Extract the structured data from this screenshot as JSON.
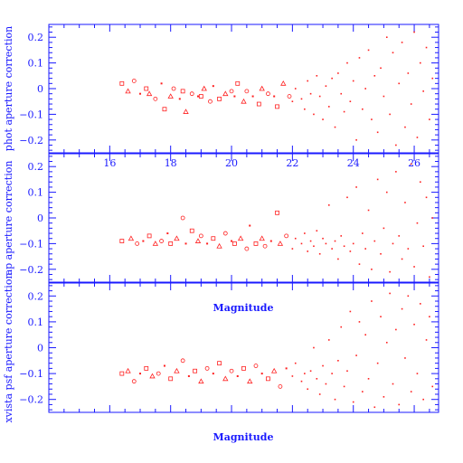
{
  "chart_data": [
    {
      "type": "scatter",
      "ylabel": "phot aperture correction",
      "xlabel": "",
      "xlim": [
        14,
        26.8
      ],
      "ylim": [
        -0.25,
        0.25
      ],
      "xticks": [
        16,
        18,
        20,
        22,
        24,
        26
      ],
      "yticks": [
        -0.2,
        -0.1,
        0,
        0.1,
        0.2
      ],
      "ytick_labels": [
        "−0.2",
        "−0.1",
        "0",
        "0.1",
        "0.2"
      ],
      "xtick_labels_shown": true,
      "grid": false,
      "series": [
        {
          "points": [
            [
              16.4,
              0.02
            ],
            [
              16.6,
              -0.01
            ],
            [
              16.8,
              0.03
            ],
            [
              17.0,
              -0.02
            ],
            [
              17.2,
              0.0
            ],
            [
              17.3,
              -0.02
            ],
            [
              17.5,
              -0.04
            ],
            [
              17.7,
              0.02
            ],
            [
              17.8,
              -0.08
            ],
            [
              18.0,
              -0.03
            ],
            [
              18.1,
              0.0
            ],
            [
              18.3,
              -0.04
            ],
            [
              18.4,
              -0.01
            ],
            [
              18.5,
              -0.09
            ],
            [
              18.7,
              -0.02
            ],
            [
              18.9,
              -0.03
            ],
            [
              19.0,
              -0.03
            ],
            [
              19.1,
              0.0
            ],
            [
              19.3,
              -0.05
            ],
            [
              19.4,
              0.01
            ],
            [
              19.6,
              -0.04
            ],
            [
              19.8,
              -0.02
            ],
            [
              20.0,
              -0.01
            ],
            [
              20.1,
              -0.03
            ],
            [
              20.2,
              0.02
            ],
            [
              20.4,
              -0.05
            ],
            [
              20.5,
              -0.01
            ],
            [
              20.7,
              -0.03
            ],
            [
              20.9,
              -0.06
            ],
            [
              21.0,
              0.0
            ],
            [
              21.2,
              -0.02
            ],
            [
              21.4,
              -0.03
            ],
            [
              21.5,
              -0.07
            ],
            [
              21.7,
              0.02
            ],
            [
              21.9,
              -0.03
            ],
            [
              22.0,
              -0.05
            ],
            [
              22.1,
              0.0
            ],
            [
              22.3,
              -0.04
            ],
            [
              22.4,
              -0.08
            ],
            [
              22.5,
              0.03
            ],
            [
              22.6,
              -0.02
            ],
            [
              22.7,
              -0.1
            ],
            [
              22.8,
              0.05
            ],
            [
              22.9,
              -0.03
            ],
            [
              23.0,
              -0.12
            ],
            [
              23.1,
              0.01
            ],
            [
              23.2,
              -0.07
            ],
            [
              23.3,
              0.04
            ],
            [
              23.4,
              -0.15
            ],
            [
              23.5,
              0.06
            ],
            [
              23.6,
              -0.02
            ],
            [
              23.7,
              -0.09
            ],
            [
              23.8,
              0.1
            ],
            [
              23.9,
              -0.05
            ],
            [
              24.0,
              0.03
            ],
            [
              24.1,
              -0.2
            ],
            [
              24.2,
              0.12
            ],
            [
              24.3,
              -0.08
            ],
            [
              24.4,
              0.0
            ],
            [
              24.5,
              0.15
            ],
            [
              24.6,
              -0.12
            ],
            [
              24.7,
              0.05
            ],
            [
              24.8,
              -0.17
            ],
            [
              24.9,
              0.08
            ],
            [
              25.0,
              -0.03
            ],
            [
              25.1,
              0.2
            ],
            [
              25.2,
              -0.1
            ],
            [
              25.3,
              0.14
            ],
            [
              25.4,
              -0.22
            ],
            [
              25.5,
              0.02
            ],
            [
              25.6,
              0.18
            ],
            [
              25.7,
              -0.15
            ],
            [
              25.8,
              0.06
            ],
            [
              25.9,
              -0.06
            ],
            [
              26.0,
              0.22
            ],
            [
              26.1,
              -0.19
            ],
            [
              26.2,
              0.1
            ],
            [
              26.3,
              -0.01
            ],
            [
              26.4,
              0.16
            ],
            [
              26.5,
              -0.12
            ],
            [
              26.6,
              0.04
            ]
          ]
        }
      ]
    },
    {
      "type": "scatter",
      "ylabel": "ap aperture correction",
      "xlabel": "Magnitude",
      "xlim": [
        14,
        26.8
      ],
      "ylim": [
        -0.25,
        0.25
      ],
      "xticks": [
        16,
        18,
        20,
        22,
        24,
        26
      ],
      "yticks": [
        -0.2,
        -0.1,
        0,
        0.1,
        0.2
      ],
      "ytick_labels": [
        "−0.2",
        "−0.1",
        "0",
        "0.1",
        "0.2"
      ],
      "xtick_labels_shown": false,
      "grid": false,
      "series": [
        {
          "points": [
            [
              16.4,
              -0.09
            ],
            [
              16.7,
              -0.08
            ],
            [
              16.9,
              -0.1
            ],
            [
              17.1,
              -0.09
            ],
            [
              17.3,
              -0.07
            ],
            [
              17.5,
              -0.1
            ],
            [
              17.7,
              -0.09
            ],
            [
              17.9,
              -0.06
            ],
            [
              18.0,
              -0.1
            ],
            [
              18.2,
              -0.08
            ],
            [
              18.4,
              0.0
            ],
            [
              18.5,
              -0.1
            ],
            [
              18.7,
              -0.05
            ],
            [
              18.9,
              -0.09
            ],
            [
              19.0,
              -0.07
            ],
            [
              19.2,
              -0.1
            ],
            [
              19.4,
              -0.08
            ],
            [
              19.6,
              -0.11
            ],
            [
              19.8,
              -0.06
            ],
            [
              20.0,
              -0.09
            ],
            [
              20.1,
              -0.1
            ],
            [
              20.3,
              -0.08
            ],
            [
              20.5,
              -0.12
            ],
            [
              20.6,
              -0.03
            ],
            [
              20.8,
              -0.1
            ],
            [
              21.0,
              -0.08
            ],
            [
              21.1,
              -0.11
            ],
            [
              21.3,
              -0.09
            ],
            [
              21.5,
              0.02
            ],
            [
              21.6,
              -0.1
            ],
            [
              21.8,
              -0.07
            ],
            [
              22.0,
              -0.12
            ],
            [
              22.1,
              -0.08
            ],
            [
              22.3,
              -0.1
            ],
            [
              22.4,
              -0.06
            ],
            [
              22.5,
              -0.13
            ],
            [
              22.6,
              -0.09
            ],
            [
              22.7,
              -0.11
            ],
            [
              22.8,
              -0.05
            ],
            [
              22.9,
              -0.14
            ],
            [
              23.0,
              -0.08
            ],
            [
              23.1,
              -0.1
            ],
            [
              23.2,
              0.05
            ],
            [
              23.3,
              -0.12
            ],
            [
              23.4,
              -0.09
            ],
            [
              23.5,
              -0.16
            ],
            [
              23.6,
              -0.07
            ],
            [
              23.7,
              -0.11
            ],
            [
              23.8,
              0.08
            ],
            [
              23.9,
              -0.13
            ],
            [
              24.0,
              -0.1
            ],
            [
              24.1,
              0.12
            ],
            [
              24.2,
              -0.18
            ],
            [
              24.3,
              -0.06
            ],
            [
              24.4,
              -0.12
            ],
            [
              24.5,
              0.03
            ],
            [
              24.6,
              -0.2
            ],
            [
              24.7,
              -0.09
            ],
            [
              24.8,
              0.15
            ],
            [
              24.9,
              -0.14
            ],
            [
              25.0,
              -0.04
            ],
            [
              25.1,
              0.1
            ],
            [
              25.2,
              -0.21
            ],
            [
              25.3,
              -0.1
            ],
            [
              25.4,
              0.18
            ],
            [
              25.5,
              -0.07
            ],
            [
              25.6,
              -0.16
            ],
            [
              25.7,
              0.06
            ],
            [
              25.8,
              -0.12
            ],
            [
              25.9,
              0.21
            ],
            [
              26.0,
              -0.19
            ],
            [
              26.1,
              -0.02
            ],
            [
              26.2,
              0.14
            ],
            [
              26.3,
              -0.11
            ],
            [
              26.4,
              0.08
            ],
            [
              26.5,
              -0.23
            ],
            [
              26.6,
              0.0
            ]
          ]
        }
      ]
    },
    {
      "type": "scatter",
      "ylabel": "xvista psf aperture correction",
      "xlabel": "Magnitude",
      "xlim": [
        14,
        26.8
      ],
      "ylim": [
        -0.25,
        0.25
      ],
      "xticks": [
        16,
        18,
        20,
        22,
        24,
        26
      ],
      "yticks": [
        -0.2,
        -0.1,
        0,
        0.1,
        0.2
      ],
      "ytick_labels": [
        "−0.2",
        "−0.1",
        "0",
        "0.1",
        "0.2"
      ],
      "xtick_labels_shown": false,
      "grid": false,
      "series": [
        {
          "points": [
            [
              16.4,
              -0.1
            ],
            [
              16.6,
              -0.09
            ],
            [
              16.8,
              -0.13
            ],
            [
              17.0,
              -0.1
            ],
            [
              17.2,
              -0.08
            ],
            [
              17.4,
              -0.11
            ],
            [
              17.6,
              -0.1
            ],
            [
              17.8,
              -0.07
            ],
            [
              18.0,
              -0.12
            ],
            [
              18.2,
              -0.09
            ],
            [
              18.4,
              -0.05
            ],
            [
              18.6,
              -0.11
            ],
            [
              18.8,
              -0.09
            ],
            [
              19.0,
              -0.13
            ],
            [
              19.2,
              -0.08
            ],
            [
              19.4,
              -0.1
            ],
            [
              19.6,
              -0.06
            ],
            [
              19.8,
              -0.12
            ],
            [
              20.0,
              -0.09
            ],
            [
              20.2,
              -0.11
            ],
            [
              20.4,
              -0.08
            ],
            [
              20.6,
              -0.13
            ],
            [
              20.8,
              -0.07
            ],
            [
              21.0,
              -0.1
            ],
            [
              21.2,
              -0.12
            ],
            [
              21.4,
              -0.09
            ],
            [
              21.6,
              -0.15
            ],
            [
              21.8,
              -0.08
            ],
            [
              22.0,
              -0.11
            ],
            [
              22.1,
              -0.06
            ],
            [
              22.3,
              -0.13
            ],
            [
              22.4,
              -0.1
            ],
            [
              22.5,
              -0.16
            ],
            [
              22.6,
              -0.09
            ],
            [
              22.7,
              0.0
            ],
            [
              22.8,
              -0.12
            ],
            [
              22.9,
              -0.18
            ],
            [
              23.0,
              -0.07
            ],
            [
              23.1,
              -0.14
            ],
            [
              23.2,
              0.03
            ],
            [
              23.3,
              -0.1
            ],
            [
              23.4,
              -0.2
            ],
            [
              23.5,
              -0.05
            ],
            [
              23.6,
              0.08
            ],
            [
              23.7,
              -0.15
            ],
            [
              23.8,
              -0.09
            ],
            [
              23.9,
              0.14
            ],
            [
              24.0,
              -0.21
            ],
            [
              24.1,
              -0.03
            ],
            [
              24.2,
              0.1
            ],
            [
              24.3,
              -0.17
            ],
            [
              24.4,
              0.05
            ],
            [
              24.5,
              -0.12
            ],
            [
              24.6,
              0.18
            ],
            [
              24.7,
              -0.23
            ],
            [
              24.8,
              -0.06
            ],
            [
              24.9,
              0.12
            ],
            [
              25.0,
              -0.19
            ],
            [
              25.1,
              0.02
            ],
            [
              25.2,
              0.21
            ],
            [
              25.3,
              -0.14
            ],
            [
              25.4,
              0.07
            ],
            [
              25.5,
              -0.22
            ],
            [
              25.6,
              0.15
            ],
            [
              25.7,
              -0.04
            ],
            [
              25.8,
              0.2
            ],
            [
              25.9,
              -0.17
            ],
            [
              26.0,
              0.09
            ],
            [
              26.1,
              -0.1
            ],
            [
              26.2,
              0.17
            ],
            [
              26.3,
              -0.2
            ],
            [
              26.4,
              0.03
            ],
            [
              26.5,
              0.12
            ],
            [
              26.6,
              -0.15
            ]
          ]
        }
      ]
    }
  ],
  "colors": {
    "axes": "#1a1aff",
    "points": "#ff2020"
  }
}
